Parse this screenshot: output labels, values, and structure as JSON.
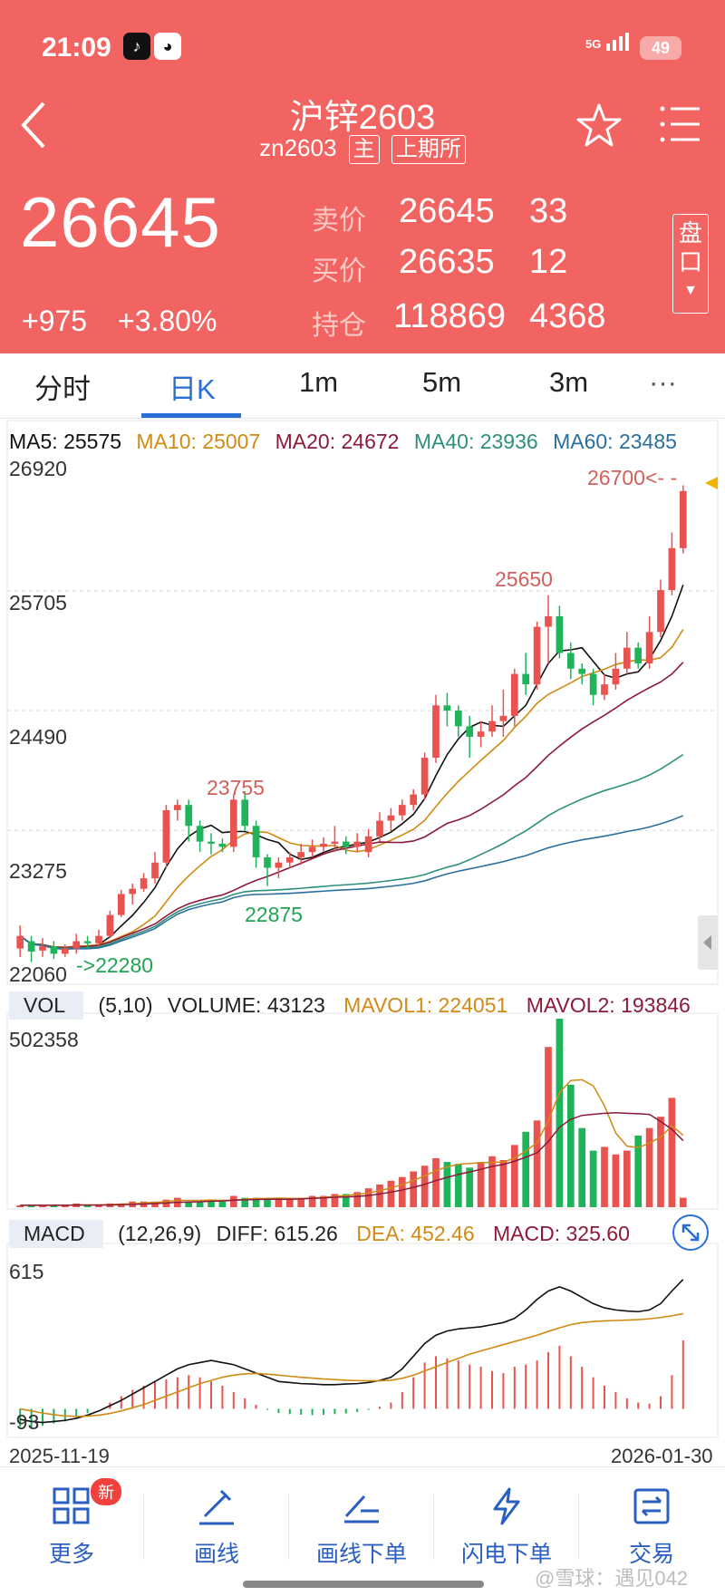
{
  "status": {
    "time": "21:09",
    "signal": "5G",
    "battery": "49"
  },
  "header": {
    "title": "沪锌2603",
    "code": "zn2603",
    "tag_main": "主",
    "tag_exchange": "上期所",
    "last_price": "26645",
    "change": "+975",
    "change_pct": "+3.80%",
    "quote": [
      {
        "label": "卖价",
        "price": "26645",
        "volume": "33"
      },
      {
        "label": "买价",
        "price": "26635",
        "volume": "12"
      },
      {
        "label": "持仓",
        "price": "118869",
        "volume": "4368"
      }
    ],
    "pan_label_1": "盘",
    "pan_label_2": "口"
  },
  "tabs": [
    "分时",
    "日K",
    "1m",
    "5m",
    "3m",
    "···"
  ],
  "active_tab": "日K",
  "ma": {
    "ma5": "MA5: 25575",
    "ma10": "MA10: 25007",
    "ma20": "MA20: 24672",
    "ma40": "MA40: 23936",
    "ma60": "MA60: 23485"
  },
  "colors": {
    "up": "#e8534f",
    "down": "#1fb45a",
    "ma5": "#111111",
    "ma10": "#d18a14",
    "ma20": "#8c1a3a",
    "ma40": "#2e8f7a",
    "ma60": "#2a6f9e",
    "header_bg": "#f26462",
    "accent": "#2a6fd6"
  },
  "price_axis": [
    "26920",
    "25705",
    "24490",
    "23275",
    "22060"
  ],
  "annotations": {
    "high_marker": "26700<- -",
    "peak_25650": "25650",
    "peak_23755": "23755",
    "low_22875": "22875",
    "low_22280": "->22280"
  },
  "volume_panel": {
    "tag": "VOL",
    "params": "(5,10)",
    "volume": "VOLUME: 43123",
    "mavol1": "MAVOL1: 224051",
    "mavol2": "MAVOL2: 193846",
    "axis_max": "502358"
  },
  "macd_panel": {
    "tag": "MACD",
    "params": "(12,26,9)",
    "diff": "DIFF: 615.26",
    "dea": "DEA: 452.46",
    "macd": "MACD: 325.60",
    "axis_max": "615",
    "axis_min": "-93"
  },
  "dates": {
    "start": "2025-11-19",
    "end": "2026-01-30"
  },
  "chart_data": {
    "type": "candlestick",
    "title": "沪锌2603 日K",
    "ylim": [
      22060,
      26920
    ],
    "candles": [
      [
        22280,
        22400,
        22200,
        22500
      ],
      [
        22350,
        22250,
        22150,
        22400
      ],
      [
        22260,
        22300,
        22200,
        22380
      ],
      [
        22300,
        22230,
        22180,
        22350
      ],
      [
        22230,
        22280,
        22200,
        22320
      ],
      [
        22280,
        22350,
        22230,
        22420
      ],
      [
        22350,
        22330,
        22280,
        22400
      ],
      [
        22330,
        22400,
        22300,
        22460
      ],
      [
        22400,
        22600,
        22380,
        22640
      ],
      [
        22600,
        22800,
        22580,
        22840
      ],
      [
        22800,
        22850,
        22700,
        22900
      ],
      [
        22850,
        22950,
        22820,
        23000
      ],
      [
        22950,
        23100,
        22900,
        23200
      ],
      [
        23100,
        23600,
        23050,
        23650
      ],
      [
        23600,
        23650,
        23500,
        23700
      ],
      [
        23650,
        23450,
        23300,
        23700
      ],
      [
        23450,
        23300,
        23200,
        23500
      ],
      [
        23300,
        23280,
        23180,
        23380
      ],
      [
        23280,
        23250,
        23200,
        23330
      ],
      [
        23250,
        23700,
        23200,
        23755
      ],
      [
        23700,
        23450,
        23400,
        23780
      ],
      [
        23450,
        23150,
        23050,
        23500
      ],
      [
        23150,
        23050,
        22875,
        23180
      ],
      [
        23050,
        23100,
        22950,
        23150
      ],
      [
        23100,
        23150,
        23050,
        23200
      ],
      [
        23150,
        23200,
        23080,
        23280
      ],
      [
        23200,
        23250,
        23150,
        23320
      ],
      [
        23250,
        23280,
        23200,
        23340
      ],
      [
        23280,
        23300,
        23200,
        23450
      ],
      [
        23300,
        23250,
        23180,
        23350
      ],
      [
        23250,
        23300,
        23200,
        23380
      ],
      [
        23200,
        23350,
        23150,
        23420
      ],
      [
        23350,
        23500,
        23300,
        23580
      ],
      [
        23500,
        23550,
        23400,
        23620
      ],
      [
        23550,
        23650,
        23500,
        23700
      ],
      [
        23650,
        23750,
        23600,
        23800
      ],
      [
        23750,
        24100,
        23700,
        24150
      ],
      [
        24100,
        24600,
        24050,
        24700
      ],
      [
        24600,
        24550,
        24400,
        24720
      ],
      [
        24550,
        24400,
        24300,
        24600
      ],
      [
        24400,
        24300,
        24100,
        24500
      ],
      [
        24300,
        24350,
        24200,
        24450
      ],
      [
        24350,
        24450,
        24300,
        24600
      ],
      [
        24450,
        24500,
        24300,
        24750
      ],
      [
        24500,
        24900,
        24400,
        24950
      ],
      [
        24900,
        24800,
        24700,
        25100
      ],
      [
        24800,
        25350,
        24750,
        25400
      ],
      [
        25350,
        25450,
        25000,
        25650
      ],
      [
        25450,
        25100,
        25050,
        25550
      ],
      [
        25100,
        24950,
        24850,
        25200
      ],
      [
        24950,
        24900,
        24800,
        25000
      ],
      [
        24900,
        24700,
        24600,
        24950
      ],
      [
        24700,
        24800,
        24650,
        24900
      ],
      [
        24800,
        24950,
        24750,
        25100
      ],
      [
        24950,
        25150,
        24900,
        25300
      ],
      [
        25150,
        25000,
        24950,
        25200
      ],
      [
        25000,
        25300,
        24950,
        25450
      ],
      [
        25300,
        25700,
        25250,
        25800
      ],
      [
        25700,
        26100,
        25650,
        26250
      ],
      [
        26100,
        26645,
        26050,
        26700
      ]
    ],
    "volume_max": 502358,
    "volume_ratio": [
      0.01,
      0.01,
      0.01,
      0.01,
      0.01,
      0.02,
      0.01,
      0.01,
      0.02,
      0.02,
      0.03,
      0.03,
      0.03,
      0.04,
      0.05,
      0.03,
      0.03,
      0.04,
      0.03,
      0.06,
      0.05,
      0.05,
      0.04,
      0.04,
      0.05,
      0.05,
      0.06,
      0.06,
      0.07,
      0.07,
      0.08,
      0.1,
      0.12,
      0.14,
      0.16,
      0.19,
      0.22,
      0.26,
      0.24,
      0.23,
      0.21,
      0.24,
      0.27,
      0.25,
      0.33,
      0.4,
      0.46,
      0.85,
      1.0,
      0.65,
      0.42,
      0.3,
      0.32,
      0.28,
      0.3,
      0.38,
      0.42,
      0.48,
      0.58,
      0.05
    ],
    "macd_hist": [
      -85,
      -93,
      -80,
      -70,
      -60,
      -40,
      -20,
      0,
      30,
      60,
      90,
      110,
      130,
      140,
      150,
      160,
      150,
      130,
      110,
      80,
      50,
      20,
      -5,
      -20,
      -25,
      -28,
      -30,
      -28,
      -25,
      -22,
      -15,
      -5,
      10,
      30,
      80,
      150,
      220,
      250,
      240,
      230,
      210,
      200,
      180,
      170,
      200,
      210,
      230,
      270,
      300,
      250,
      200,
      150,
      110,
      80,
      50,
      30,
      25,
      60,
      160,
      325.6
    ],
    "diff": [
      -50,
      -60,
      -65,
      -60,
      -55,
      -45,
      -30,
      -10,
      15,
      40,
      70,
      100,
      130,
      160,
      190,
      210,
      220,
      230,
      220,
      210,
      190,
      170,
      150,
      130,
      125,
      120,
      118,
      115,
      115,
      118,
      120,
      125,
      135,
      150,
      190,
      250,
      310,
      350,
      370,
      380,
      385,
      390,
      400,
      410,
      430,
      470,
      520,
      560,
      580,
      560,
      530,
      500,
      480,
      470,
      465,
      462,
      470,
      500,
      560,
      615.26
    ],
    "dea": [
      0,
      -10,
      -20,
      -28,
      -34,
      -36,
      -35,
      -30,
      -22,
      -10,
      5,
      20,
      40,
      60,
      80,
      100,
      120,
      135,
      150,
      160,
      166,
      168,
      165,
      160,
      155,
      150,
      146,
      142,
      139,
      136,
      134,
      133,
      133,
      136,
      145,
      160,
      180,
      200,
      220,
      240,
      260,
      275,
      290,
      305,
      320,
      335,
      350,
      368,
      385,
      400,
      410,
      415,
      418,
      420,
      422,
      424,
      428,
      434,
      442,
      452.46
    ]
  }
}
